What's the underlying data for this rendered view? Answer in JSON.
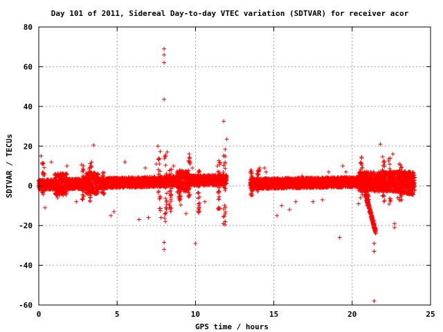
{
  "chart_data": {
    "type": "scatter",
    "title": "Day 101 of 2011, Sidereal Day-to-day VTEC variation (SDTVAR) for receiver acor",
    "xlabel": "GPS time / hours",
    "ylabel": "SDTVAR / TECUs",
    "xlim": [
      0,
      25
    ],
    "ylim": [
      -60,
      80
    ],
    "xticks": [
      0,
      5,
      10,
      15,
      20,
      25
    ],
    "yticks": [
      -60,
      -40,
      -20,
      0,
      20,
      40,
      60,
      80
    ],
    "grid": true,
    "marker": "+",
    "color": "#ff0000",
    "gap_hours": [
      12.0,
      13.5
    ],
    "outliers": [
      {
        "x": 0.15,
        "y": 15
      },
      {
        "x": 0.4,
        "y": -11
      },
      {
        "x": 0.8,
        "y": 12
      },
      {
        "x": 1.2,
        "y": -6
      },
      {
        "x": 1.8,
        "y": 10
      },
      {
        "x": 2.4,
        "y": -8
      },
      {
        "x": 3.5,
        "y": 20.5
      },
      {
        "x": 4.6,
        "y": -15
      },
      {
        "x": 4.8,
        "y": -13
      },
      {
        "x": 5.5,
        "y": 12
      },
      {
        "x": 6.4,
        "y": -17
      },
      {
        "x": 6.8,
        "y": 9
      },
      {
        "x": 7.0,
        "y": -16
      },
      {
        "x": 7.5,
        "y": 11
      },
      {
        "x": 7.6,
        "y": 20
      },
      {
        "x": 7.8,
        "y": -16
      },
      {
        "x": 8.0,
        "y": 69
      },
      {
        "x": 8.0,
        "y": 66
      },
      {
        "x": 8.0,
        "y": 62
      },
      {
        "x": 8.0,
        "y": 43.5
      },
      {
        "x": 8.0,
        "y": -28.5
      },
      {
        "x": 8.0,
        "y": -32
      },
      {
        "x": 8.2,
        "y": 17
      },
      {
        "x": 8.6,
        "y": 10
      },
      {
        "x": 9.4,
        "y": -14
      },
      {
        "x": 9.6,
        "y": 16
      },
      {
        "x": 9.8,
        "y": 9
      },
      {
        "x": 10.0,
        "y": -29
      },
      {
        "x": 10.2,
        "y": 7
      },
      {
        "x": 10.6,
        "y": -8
      },
      {
        "x": 11.4,
        "y": 10
      },
      {
        "x": 11.8,
        "y": 32.5
      },
      {
        "x": 12.0,
        "y": 23.5
      },
      {
        "x": 11.9,
        "y": -18
      },
      {
        "x": 13.5,
        "y": 7
      },
      {
        "x": 14.1,
        "y": 9
      },
      {
        "x": 14.4,
        "y": 9
      },
      {
        "x": 14.5,
        "y": 7
      },
      {
        "x": 15.2,
        "y": -15
      },
      {
        "x": 15.5,
        "y": -10
      },
      {
        "x": 16.0,
        "y": -12
      },
      {
        "x": 16.4,
        "y": -8
      },
      {
        "x": 16.8,
        "y": 5
      },
      {
        "x": 17.5,
        "y": -8
      },
      {
        "x": 18.1,
        "y": -7
      },
      {
        "x": 18.5,
        "y": 7
      },
      {
        "x": 19.2,
        "y": -26
      },
      {
        "x": 19.4,
        "y": 10
      },
      {
        "x": 19.6,
        "y": 7
      },
      {
        "x": 20.4,
        "y": -9
      },
      {
        "x": 20.6,
        "y": 14
      },
      {
        "x": 21.0,
        "y": -5
      },
      {
        "x": 21.4,
        "y": -29
      },
      {
        "x": 21.4,
        "y": -33
      },
      {
        "x": 21.4,
        "y": -58
      },
      {
        "x": 21.5,
        "y": -24
      },
      {
        "x": 21.8,
        "y": 21
      },
      {
        "x": 22.6,
        "y": 16
      },
      {
        "x": 22.7,
        "y": -21
      },
      {
        "x": 22.7,
        "y": -19
      },
      {
        "x": 22.9,
        "y": -6
      },
      {
        "x": 23.0,
        "y": 11
      }
    ]
  }
}
